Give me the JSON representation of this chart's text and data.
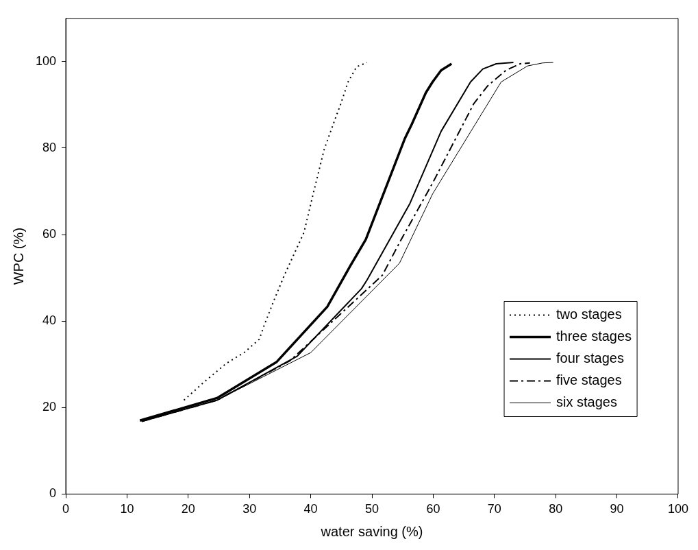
{
  "chart_data": {
    "type": "line",
    "xlabel": "water saving (%)",
    "ylabel": "WPC (%)",
    "xlim": [
      0,
      100
    ],
    "xticks": [
      0,
      10,
      20,
      30,
      40,
      50,
      60,
      70,
      80,
      90,
      100
    ],
    "ylim": [
      0,
      110
    ],
    "yticks": [
      0,
      20,
      40,
      60,
      80,
      100
    ],
    "grid": false,
    "legend": "right",
    "marker": "none",
    "series": [
      {
        "name": "two stages",
        "color": "#000000",
        "line_style": "dotted",
        "x": [
          19.3,
          22.5,
          26.2,
          29.2,
          31.6,
          32.4,
          34,
          35.7,
          38.9,
          40.4,
          42.2,
          43.8,
          44.9,
          46.1,
          47.5,
          49.2
        ],
        "values": [
          21.7,
          25.8,
          30.2,
          32.8,
          35.8,
          39,
          44.8,
          50.6,
          60.5,
          69.4,
          79.7,
          86,
          90.2,
          95.3,
          98.8,
          99.8
        ]
      },
      {
        "name": "three stages",
        "color": "#000000",
        "line_style": "solid",
        "x": [
          12.1,
          24.7,
          34.4,
          42.7,
          46.4,
          49,
          55.4,
          56.5,
          58.8,
          59.9,
          61.3,
          63
        ],
        "values": [
          17,
          22.2,
          30.5,
          43.3,
          52.6,
          58.9,
          82.3,
          85.5,
          92.8,
          95.3,
          98,
          99.5
        ]
      },
      {
        "name": "four stages",
        "color": "#000000",
        "line_style": "solid",
        "x": [
          12.4,
          24.7,
          37.8,
          48.3,
          49.2,
          56.2,
          61.3,
          66.1,
          68.1,
          70.3,
          73.1
        ],
        "values": [
          16.8,
          21.7,
          31.9,
          47.5,
          49.5,
          67.2,
          83.9,
          95.3,
          98.3,
          99.5,
          99.8
        ]
      },
      {
        "name": "five stages",
        "color": "#000000",
        "line_style": "dashdot",
        "x": [
          12.4,
          24.7,
          36.6,
          51.7,
          54.6,
          59.9,
          66.6,
          68.9,
          71.9,
          74.2,
          75.8
        ],
        "values": [
          16.8,
          21.7,
          30.8,
          50.6,
          58.4,
          71.9,
          90.2,
          94.4,
          98,
          99.5,
          99.7
        ]
      },
      {
        "name": "six stages",
        "color": "#000000",
        "line_style": "solid",
        "x": [
          12.4,
          24.7,
          40,
          54.5,
          59.9,
          71.1,
          75.4,
          77.9,
          79.6
        ],
        "values": [
          16.8,
          21.7,
          32.7,
          53.4,
          69.4,
          95.3,
          99,
          99.7,
          99.8
        ]
      }
    ]
  }
}
